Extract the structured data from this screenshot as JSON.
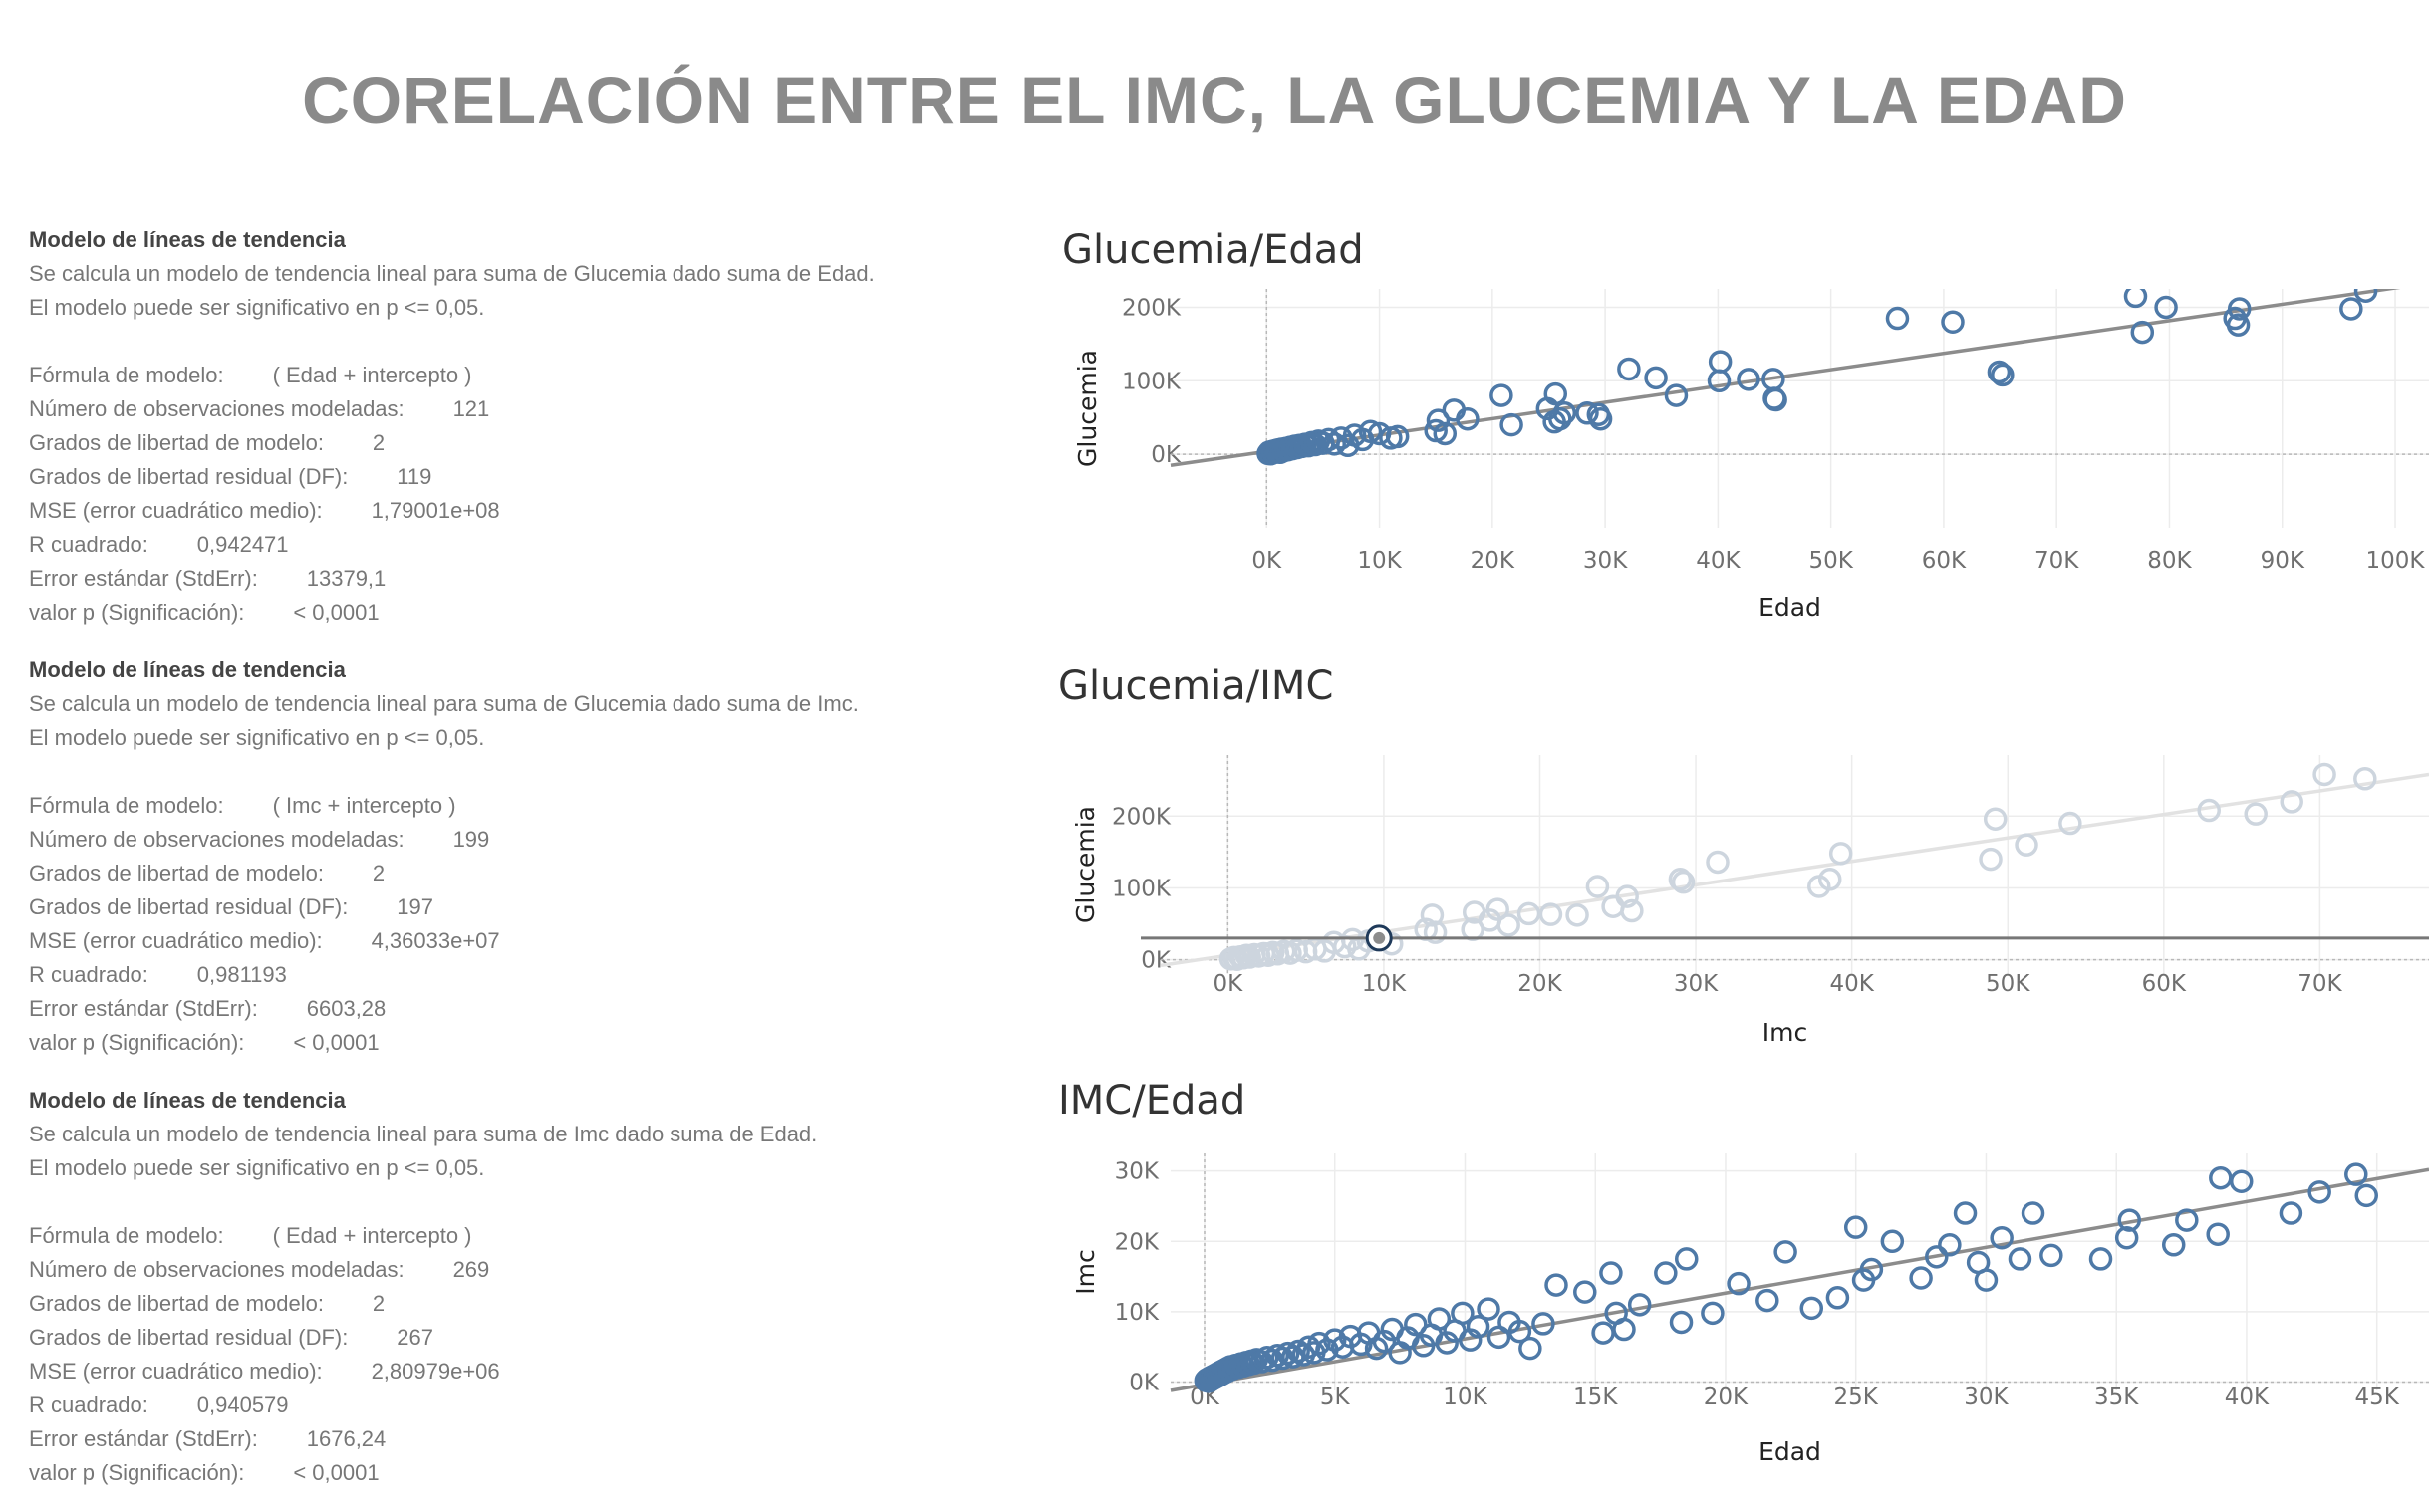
{
  "page_title": "CORELACIÓN ENTRE EL IMC, LA GLUCEMIA Y LA EDAD",
  "models": [
    {
      "heading": "Modelo de líneas de tendencia",
      "desc1": "Se calcula un modelo de tendencia lineal para suma de Glucemia dado suma de Edad.",
      "desc2": "El modelo puede ser significativo en p <= 0,05.",
      "rows": [
        [
          "Fórmula de modelo:",
          "( Edad + intercepto )"
        ],
        [
          "Número de observaciones modeladas:",
          "121"
        ],
        [
          "Grados de libertad de modelo:",
          "2"
        ],
        [
          "Grados de libertad residual (DF):",
          "119"
        ],
        [
          "MSE (error cuadrático medio):",
          "1,79001e+08"
        ],
        [
          "R cuadrado:",
          "0,942471"
        ],
        [
          "Error estándar (StdErr):",
          "13379,1"
        ],
        [
          "valor p (Significación):",
          "< 0,0001"
        ]
      ]
    },
    {
      "heading": "Modelo de líneas de tendencia",
      "desc1": "Se calcula un modelo de tendencia lineal para suma de Glucemia dado suma de Imc.",
      "desc2": "El modelo puede ser significativo en p <= 0,05.",
      "rows": [
        [
          "Fórmula de modelo:",
          "( Imc + intercepto )"
        ],
        [
          "Número de observaciones modeladas:",
          "199"
        ],
        [
          "Grados de libertad de modelo:",
          "2"
        ],
        [
          "Grados de libertad residual (DF):",
          "197"
        ],
        [
          "MSE (error cuadrático medio):",
          "4,36033e+07"
        ],
        [
          "R cuadrado:",
          "0,981193"
        ],
        [
          "Error estándar (StdErr):",
          "6603,28"
        ],
        [
          "valor p (Significación):",
          "< 0,0001"
        ]
      ]
    },
    {
      "heading": "Modelo de líneas de tendencia",
      "desc1": "Se calcula un modelo de tendencia lineal para suma de Imc dado suma de Edad.",
      "desc2": "El modelo puede ser significativo en p <= 0,05.",
      "rows": [
        [
          "Fórmula de modelo:",
          "( Edad + intercepto )"
        ],
        [
          "Número de observaciones modeladas:",
          "269"
        ],
        [
          "Grados de libertad de modelo:",
          "2"
        ],
        [
          "Grados de libertad residual (DF):",
          "267"
        ],
        [
          "MSE (error cuadrático medio):",
          "2,80979e+06"
        ],
        [
          "R cuadrado:",
          "0,940579"
        ],
        [
          "Error estándar (StdErr):",
          "1676,24"
        ],
        [
          "valor p (Significación):",
          "< 0,0001"
        ]
      ]
    }
  ],
  "colors": {
    "point": "#4e79a7",
    "point_faded": "#cdd5de",
    "trend": "#8c8c8c",
    "trend_faded": "#e2e2e2",
    "grid": "#ececec",
    "zero": "#b8b8b8",
    "reference": "#777777",
    "highlight": "#1f3a5a"
  },
  "chart_data": [
    {
      "type": "scatter",
      "title": "Glucemia/Edad",
      "xlabel": "Edad",
      "ylabel": "Glucemia",
      "xticks": [
        "0K",
        "10K",
        "20K",
        "30K",
        "40K",
        "50K",
        "60K",
        "70K",
        "80K",
        "90K",
        "100K"
      ],
      "yticks": [
        "0K",
        "100K",
        "200K"
      ],
      "xlim": [
        -8500,
        103000
      ],
      "ylim": [
        -100000,
        225000
      ],
      "trend": {
        "x": [
          -8500,
          103000
        ],
        "y": [
          -15000,
          233000
        ]
      },
      "points": [
        [
          150,
          1000
        ],
        [
          250,
          3000
        ],
        [
          350,
          500
        ],
        [
          500,
          4000
        ],
        [
          600,
          2000
        ],
        [
          750,
          5000
        ],
        [
          900,
          3500
        ],
        [
          1000,
          6000
        ],
        [
          1200,
          2500
        ],
        [
          1300,
          7000
        ],
        [
          1500,
          4500
        ],
        [
          1700,
          8000
        ],
        [
          1900,
          6000
        ],
        [
          2100,
          9500
        ],
        [
          2300,
          7500
        ],
        [
          2500,
          11000
        ],
        [
          2700,
          9000
        ],
        [
          2900,
          12000
        ],
        [
          3100,
          10500
        ],
        [
          3400,
          13500
        ],
        [
          3700,
          11500
        ],
        [
          4000,
          16000
        ],
        [
          4300,
          13000
        ],
        [
          4600,
          18000
        ],
        [
          5000,
          15000
        ],
        [
          5500,
          20000
        ],
        [
          6000,
          14000
        ],
        [
          6600,
          22000
        ],
        [
          7200,
          12000
        ],
        [
          7800,
          26000
        ],
        [
          8500,
          20000
        ],
        [
          9200,
          31000
        ],
        [
          10000,
          28000
        ],
        [
          11000,
          22000
        ],
        [
          11600,
          24000
        ],
        [
          15000,
          32000
        ],
        [
          15200,
          46000
        ],
        [
          15800,
          28000
        ],
        [
          16600,
          60000
        ],
        [
          17800,
          48000
        ],
        [
          20800,
          80000
        ],
        [
          21700,
          40000
        ],
        [
          24900,
          62000
        ],
        [
          25500,
          44000
        ],
        [
          25600,
          82000
        ],
        [
          26000,
          48000
        ],
        [
          26400,
          56000
        ],
        [
          28400,
          56000
        ],
        [
          29400,
          54000
        ],
        [
          29600,
          48000
        ],
        [
          32100,
          116000
        ],
        [
          34500,
          104000
        ],
        [
          36300,
          80000
        ],
        [
          40100,
          100000
        ],
        [
          40200,
          126000
        ],
        [
          42700,
          102000
        ],
        [
          44900,
          102000
        ],
        [
          45000,
          76000
        ],
        [
          45100,
          74000
        ],
        [
          55900,
          185000
        ],
        [
          60800,
          180000
        ],
        [
          64900,
          112000
        ],
        [
          65200,
          108000
        ],
        [
          77000,
          215000
        ],
        [
          77600,
          166000
        ],
        [
          79700,
          200000
        ],
        [
          85800,
          185000
        ],
        [
          86100,
          176000
        ],
        [
          86200,
          198000
        ],
        [
          96100,
          198000
        ],
        [
          97400,
          222000
        ]
      ]
    },
    {
      "type": "scatter",
      "title": "Glucemia/IMC",
      "xlabel": "Imc",
      "ylabel": "Glucemia",
      "xticks": [
        "0K",
        "10K",
        "20K",
        "30K",
        "40K",
        "50K",
        "60K",
        "70K"
      ],
      "yticks": [
        "0K",
        "100K",
        "200K"
      ],
      "xlim": [
        -4300,
        77000
      ],
      "ylim": [
        -20000,
        285000
      ],
      "reference_y": 30000,
      "highlight": [
        9700,
        30000
      ],
      "trend": {
        "x": [
          -4300,
          77000
        ],
        "y": [
          -8000,
          258000
        ]
      },
      "points": [
        [
          200,
          1000
        ],
        [
          400,
          3000
        ],
        [
          600,
          500
        ],
        [
          800,
          4000
        ],
        [
          1000,
          2500
        ],
        [
          1200,
          6000
        ],
        [
          1400,
          3500
        ],
        [
          1700,
          7000
        ],
        [
          2000,
          5000
        ],
        [
          2300,
          8500
        ],
        [
          2600,
          6000
        ],
        [
          2900,
          10000
        ],
        [
          3200,
          8000
        ],
        [
          3600,
          11500
        ],
        [
          4000,
          9000
        ],
        [
          4400,
          13000
        ],
        [
          5000,
          11000
        ],
        [
          5600,
          15000
        ],
        [
          6200,
          12000
        ],
        [
          6800,
          24000
        ],
        [
          7500,
          18000
        ],
        [
          8000,
          28000
        ],
        [
          8400,
          15000
        ],
        [
          9000,
          26000
        ],
        [
          10500,
          22000
        ],
        [
          12700,
          42000
        ],
        [
          13100,
          62000
        ],
        [
          13300,
          38000
        ],
        [
          15700,
          42000
        ],
        [
          15800,
          66000
        ],
        [
          16800,
          55000
        ],
        [
          17300,
          70000
        ],
        [
          18000,
          48000
        ],
        [
          19300,
          64000
        ],
        [
          20700,
          63000
        ],
        [
          22400,
          62000
        ],
        [
          23700,
          102000
        ],
        [
          24700,
          74000
        ],
        [
          25600,
          88000
        ],
        [
          25900,
          68000
        ],
        [
          29000,
          112000
        ],
        [
          29200,
          108000
        ],
        [
          31400,
          136000
        ],
        [
          37900,
          102000
        ],
        [
          38600,
          112000
        ],
        [
          39300,
          148000
        ],
        [
          48900,
          140000
        ],
        [
          49200,
          196000
        ],
        [
          51200,
          160000
        ],
        [
          54000,
          190000
        ],
        [
          62900,
          208000
        ],
        [
          65900,
          203000
        ],
        [
          68200,
          220000
        ],
        [
          70300,
          258000
        ],
        [
          72900,
          252000
        ]
      ]
    },
    {
      "type": "scatter",
      "title": "IMC/Edad",
      "xlabel": "Edad",
      "ylabel": "Imc",
      "xticks": [
        "0K",
        "5K",
        "10K",
        "15K",
        "20K",
        "25K",
        "30K",
        "35K",
        "40K",
        "45K"
      ],
      "yticks": [
        "0K",
        "10K",
        "20K",
        "30K"
      ],
      "xlim": [
        -1300,
        47000
      ],
      "ylim": [
        -1200,
        32500
      ],
      "trend": {
        "x": [
          -1300,
          47000
        ],
        "y": [
          -1200,
          30200
        ]
      },
      "points": [
        [
          50,
          200
        ],
        [
          100,
          400
        ],
        [
          150,
          100
        ],
        [
          200,
          600
        ],
        [
          250,
          300
        ],
        [
          300,
          800
        ],
        [
          350,
          500
        ],
        [
          400,
          1000
        ],
        [
          450,
          700
        ],
        [
          500,
          1200
        ],
        [
          550,
          900
        ],
        [
          600,
          1400
        ],
        [
          650,
          1100
        ],
        [
          700,
          1600
        ],
        [
          750,
          1300
        ],
        [
          800,
          1800
        ],
        [
          850,
          1500
        ],
        [
          900,
          2000
        ],
        [
          950,
          1700
        ],
        [
          1000,
          2200
        ],
        [
          1100,
          1900
        ],
        [
          1200,
          2400
        ],
        [
          1300,
          2100
        ],
        [
          1400,
          2600
        ],
        [
          1500,
          2300
        ],
        [
          1600,
          2800
        ],
        [
          1700,
          2500
        ],
        [
          1800,
          3000
        ],
        [
          1900,
          2700
        ],
        [
          2000,
          3200
        ],
        [
          2200,
          2900
        ],
        [
          2400,
          3500
        ],
        [
          2600,
          3100
        ],
        [
          2800,
          3800
        ],
        [
          3000,
          3400
        ],
        [
          3200,
          4100
        ],
        [
          3400,
          3600
        ],
        [
          3600,
          4400
        ],
        [
          3800,
          3900
        ],
        [
          4000,
          5000
        ],
        [
          4200,
          4200
        ],
        [
          4400,
          5500
        ],
        [
          4700,
          4600
        ],
        [
          5000,
          6000
        ],
        [
          5300,
          5000
        ],
        [
          5600,
          6500
        ],
        [
          6000,
          5400
        ],
        [
          6300,
          7000
        ],
        [
          6600,
          4800
        ],
        [
          6900,
          5800
        ],
        [
          7200,
          7500
        ],
        [
          7500,
          4200
        ],
        [
          7800,
          6300
        ],
        [
          8100,
          8200
        ],
        [
          8400,
          5200
        ],
        [
          8700,
          6700
        ],
        [
          9000,
          9000
        ],
        [
          9300,
          5600
        ],
        [
          9600,
          7300
        ],
        [
          9900,
          9800
        ],
        [
          10200,
          6000
        ],
        [
          10500,
          7900
        ],
        [
          10900,
          10400
        ],
        [
          11300,
          6400
        ],
        [
          11700,
          8500
        ],
        [
          12100,
          7200
        ],
        [
          12500,
          4800
        ],
        [
          13000,
          8300
        ],
        [
          13500,
          13800
        ],
        [
          14600,
          12800
        ],
        [
          15300,
          7000
        ],
        [
          15600,
          15500
        ],
        [
          15800,
          9800
        ],
        [
          16100,
          7500
        ],
        [
          16700,
          11000
        ],
        [
          17700,
          15500
        ],
        [
          18300,
          8500
        ],
        [
          18500,
          17500
        ],
        [
          19500,
          9800
        ],
        [
          20500,
          14000
        ],
        [
          21600,
          11600
        ],
        [
          22300,
          18500
        ],
        [
          23300,
          10500
        ],
        [
          24300,
          12000
        ],
        [
          25000,
          22000
        ],
        [
          25300,
          14500
        ],
        [
          25600,
          16000
        ],
        [
          26400,
          20000
        ],
        [
          27500,
          14800
        ],
        [
          28100,
          17800
        ],
        [
          28600,
          19500
        ],
        [
          29200,
          24000
        ],
        [
          29700,
          17000
        ],
        [
          30000,
          14500
        ],
        [
          30600,
          20500
        ],
        [
          31300,
          17500
        ],
        [
          31800,
          24000
        ],
        [
          32500,
          18000
        ],
        [
          34400,
          17500
        ],
        [
          35400,
          20500
        ],
        [
          35500,
          23000
        ],
        [
          37200,
          19500
        ],
        [
          37700,
          23000
        ],
        [
          38900,
          21000
        ],
        [
          39000,
          29000
        ],
        [
          39800,
          28500
        ],
        [
          41700,
          24000
        ],
        [
          42800,
          27000
        ],
        [
          44200,
          29500
        ],
        [
          44600,
          26500
        ]
      ]
    }
  ]
}
